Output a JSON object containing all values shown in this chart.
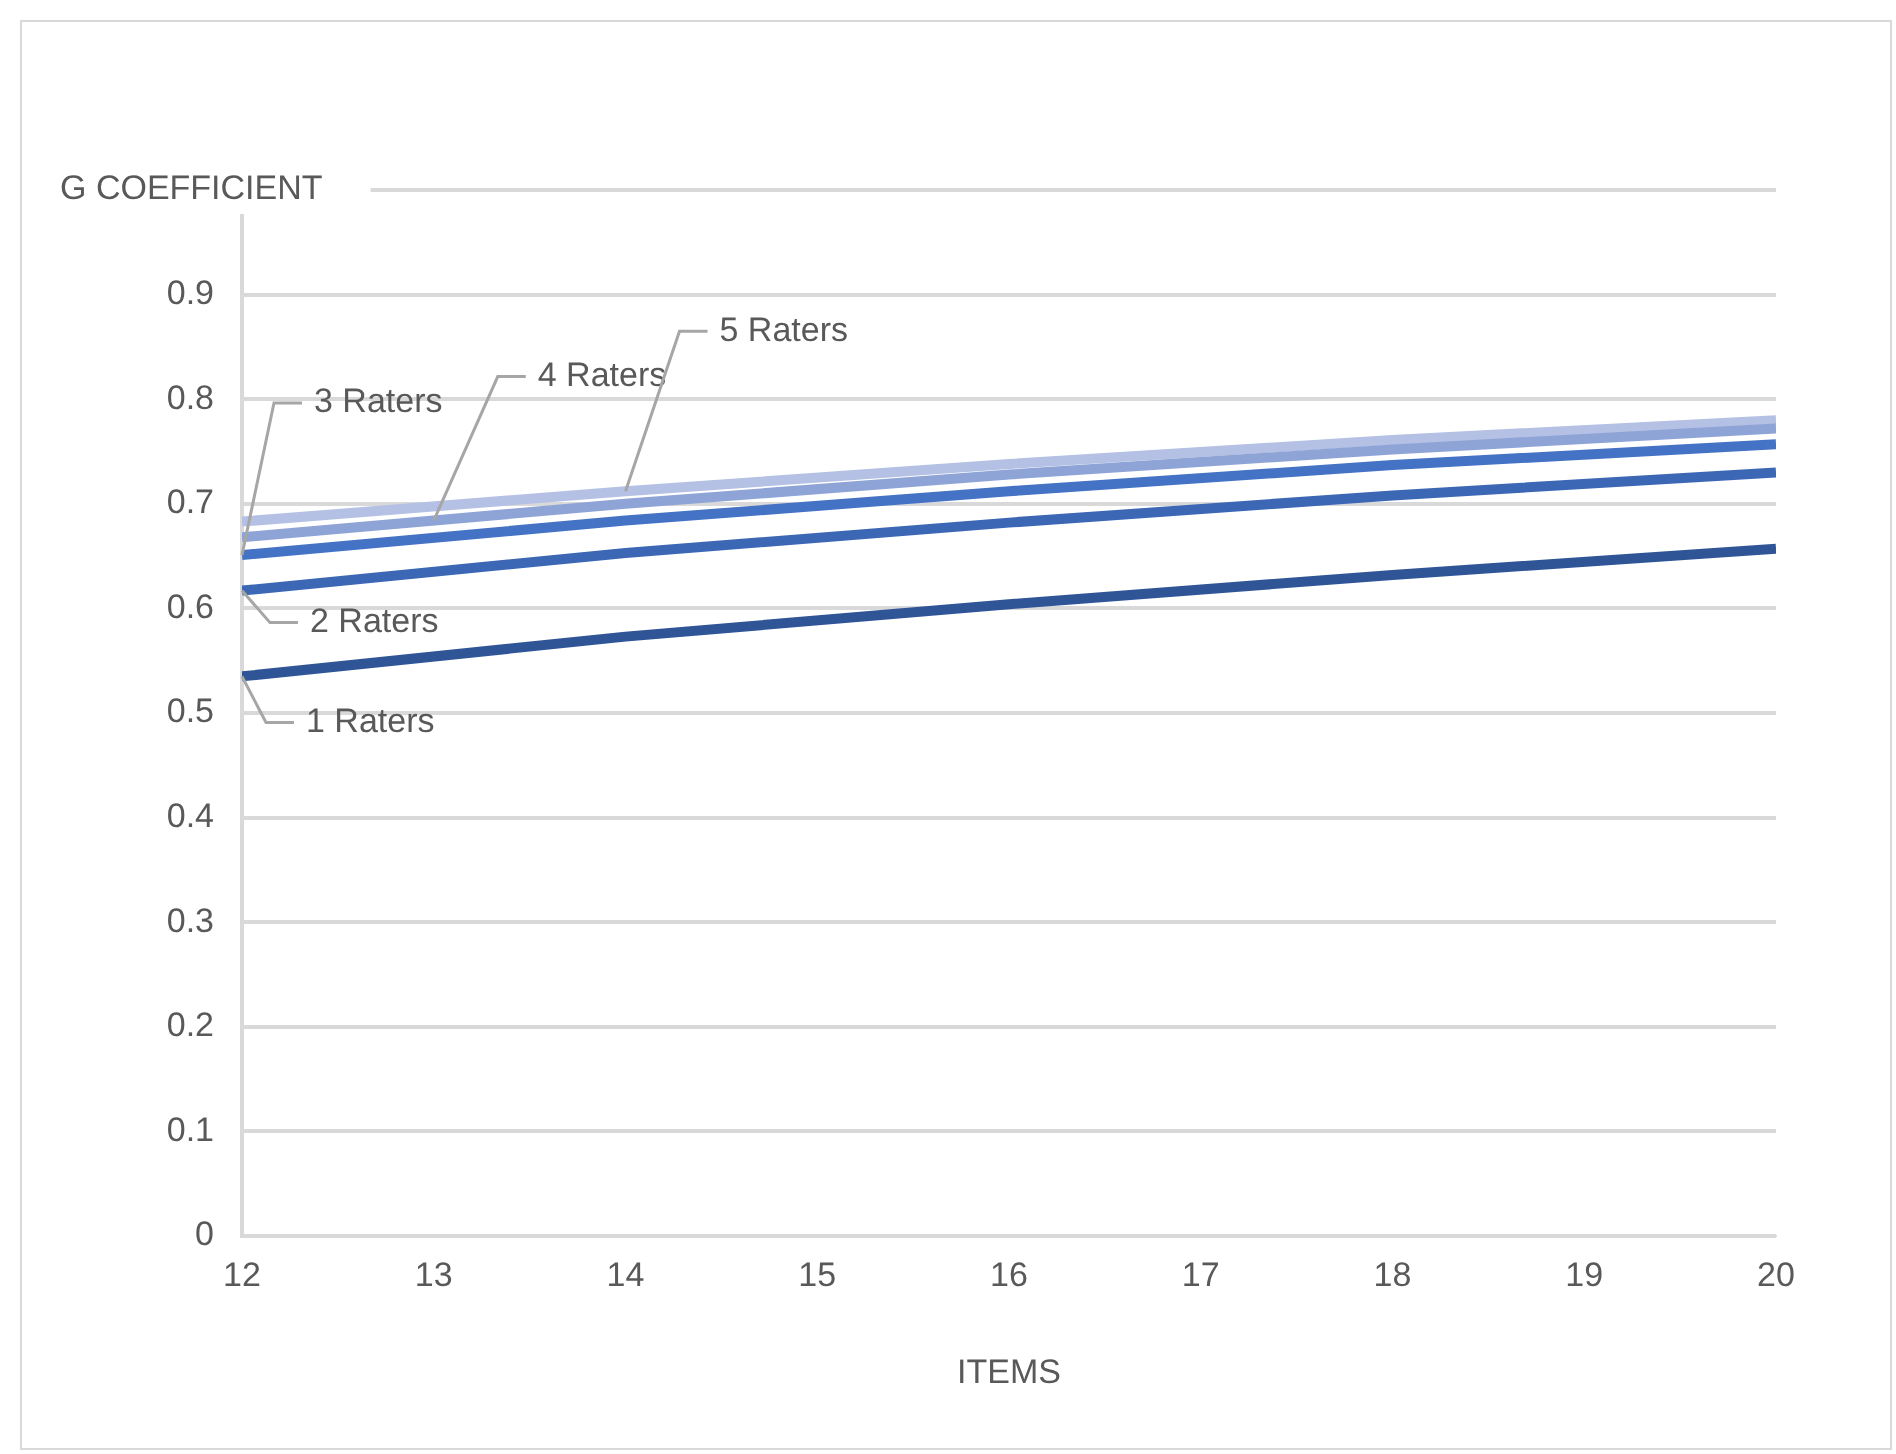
{
  "chart_data": {
    "type": "line",
    "xlabel": "ITEMS",
    "ylabel": "G COEFFICIENT",
    "x": [
      12,
      14,
      16,
      18,
      20
    ],
    "series": [
      {
        "name": "1 Raters",
        "color": "#2f5597",
        "values": [
          0.535,
          0.573,
          0.604,
          0.632,
          0.657
        ]
      },
      {
        "name": "2 Raters",
        "color": "#3b67b5",
        "values": [
          0.617,
          0.653,
          0.682,
          0.708,
          0.73
        ]
      },
      {
        "name": "3 Raters",
        "color": "#4472c4",
        "values": [
          0.651,
          0.684,
          0.712,
          0.737,
          0.757
        ]
      },
      {
        "name": "4 Raters",
        "color": "#8fa4d6",
        "values": [
          0.668,
          0.7,
          0.728,
          0.752,
          0.772
        ]
      },
      {
        "name": "5 Raters",
        "color": "#b4c1e4",
        "values": [
          0.683,
          0.712,
          0.738,
          0.761,
          0.78
        ]
      }
    ],
    "xlim": [
      12,
      20
    ],
    "xticks": [
      12,
      13,
      14,
      15,
      16,
      17,
      18,
      19,
      20
    ],
    "ylim": [
      0,
      1
    ],
    "yticks": [
      0,
      0.1,
      0.2,
      0.3,
      0.4,
      0.5,
      0.6,
      0.7,
      0.8,
      0.9,
      {
        "value": 1,
        "label": null
      }
    ],
    "grid": "y",
    "marker": "none",
    "line_style": "solid"
  }
}
